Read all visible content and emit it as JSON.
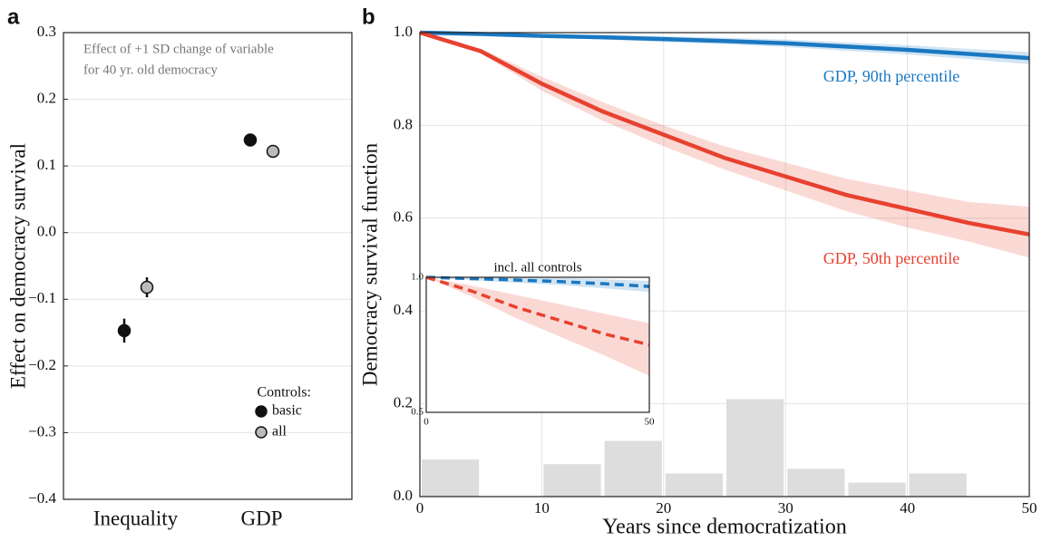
{
  "chart_data": [
    {
      "type": "errorbar",
      "panel_label": "a",
      "y_label": "Effect on democracy survival",
      "annotation": [
        "Effect of +1 SD change of variable",
        "for 40 yr. old democracy"
      ],
      "legend_title": "Controls:",
      "legend": "lower right",
      "categories": [
        "Inequality",
        "GDP"
      ],
      "series": [
        {
          "name": "basic",
          "color": "#111111",
          "values": [
            -0.147,
            0.139
          ],
          "errors": [
            0.018,
            0.009
          ]
        },
        {
          "name": "all",
          "color": "#bbbbbb",
          "values": [
            -0.082,
            0.122
          ],
          "errors": [
            0.015,
            0.009
          ]
        }
      ],
      "ylim": [
        -0.4,
        0.3
      ],
      "yticks": [
        {
          "value": -0.4,
          "label": "−0.4"
        },
        {
          "value": -0.3,
          "label": "−0.3"
        },
        {
          "value": -0.2,
          "label": "−0.2"
        },
        {
          "value": -0.1,
          "label": "−0.1"
        },
        {
          "value": 0.0,
          "label": "0.0"
        },
        0.1,
        0.2,
        0.3
      ],
      "grid": true
    },
    {
      "type": "line",
      "panel_label": "b",
      "x_label": "Years since democratization",
      "y_label": "Democracy survival function",
      "x": [
        0,
        5,
        10,
        15,
        20,
        25,
        30,
        35,
        40,
        45,
        50
      ],
      "series": [
        {
          "name": "GDP, 90th percentile",
          "color": "#1a78c2",
          "values": [
            1.0,
            0.997,
            0.993,
            0.99,
            0.986,
            0.982,
            0.977,
            0.97,
            0.963,
            0.954,
            0.945
          ],
          "lower": [
            1.0,
            0.995,
            0.99,
            0.985,
            0.98,
            0.975,
            0.969,
            0.961,
            0.953,
            0.943,
            0.932
          ],
          "upper": [
            1.0,
            0.999,
            0.996,
            0.995,
            0.992,
            0.989,
            0.985,
            0.979,
            0.973,
            0.965,
            0.958
          ]
        },
        {
          "name": "GDP, 50th percentile",
          "color": "#e8412f",
          "values": [
            1.0,
            0.96,
            0.89,
            0.83,
            0.78,
            0.73,
            0.69,
            0.65,
            0.62,
            0.59,
            0.565
          ],
          "lower": [
            1.0,
            0.955,
            0.875,
            0.81,
            0.755,
            0.705,
            0.66,
            0.615,
            0.58,
            0.55,
            0.515
          ],
          "upper": [
            1.0,
            0.965,
            0.905,
            0.85,
            0.8,
            0.755,
            0.72,
            0.685,
            0.66,
            0.635,
            0.625
          ]
        }
      ],
      "histogram": {
        "bins": [
          0,
          5,
          10,
          15,
          20,
          25,
          30,
          35,
          40,
          45,
          50
        ],
        "values": [
          0.08,
          0,
          0.07,
          0.12,
          0.05,
          0.21,
          0.06,
          0.03,
          0.05,
          0
        ],
        "color": "#dddddd"
      },
      "xlim": [
        0,
        50
      ],
      "xticks": [
        0,
        10,
        20,
        30,
        40,
        50
      ],
      "ylim": [
        0.0,
        1.0
      ],
      "yticks": [
        {
          "value": 0.0,
          "label": "0.0"
        },
        0.2,
        0.4,
        0.6,
        0.8,
        {
          "value": 1.0,
          "label": "1.0"
        }
      ],
      "grid": true
    },
    {
      "type": "line",
      "title": "incl. all controls",
      "dashed": true,
      "x": [
        0,
        10,
        20,
        30,
        40,
        50
      ],
      "series": [
        {
          "color": "#1a78c2",
          "values": [
            1.0,
            0.995,
            0.99,
            0.984,
            0.976,
            0.966
          ],
          "lower": [
            1.0,
            0.99,
            0.98,
            0.971,
            0.959,
            0.946
          ],
          "upper": [
            1.0,
            1.0,
            1.0,
            0.997,
            0.993,
            0.986
          ]
        },
        {
          "color": "#e8412f",
          "values": [
            1.0,
            0.95,
            0.89,
            0.84,
            0.79,
            0.75
          ],
          "lower": [
            1.0,
            0.93,
            0.85,
            0.78,
            0.71,
            0.635
          ],
          "upper": [
            1.0,
            0.97,
            0.935,
            0.9,
            0.865,
            0.83
          ]
        }
      ],
      "xlim": [
        0,
        50
      ],
      "xticks": [
        0,
        50
      ],
      "ylim": [
        0.5,
        1.0
      ],
      "yticks": [
        0.5,
        {
          "value": 1.0,
          "label": "1.0"
        }
      ]
    }
  ]
}
